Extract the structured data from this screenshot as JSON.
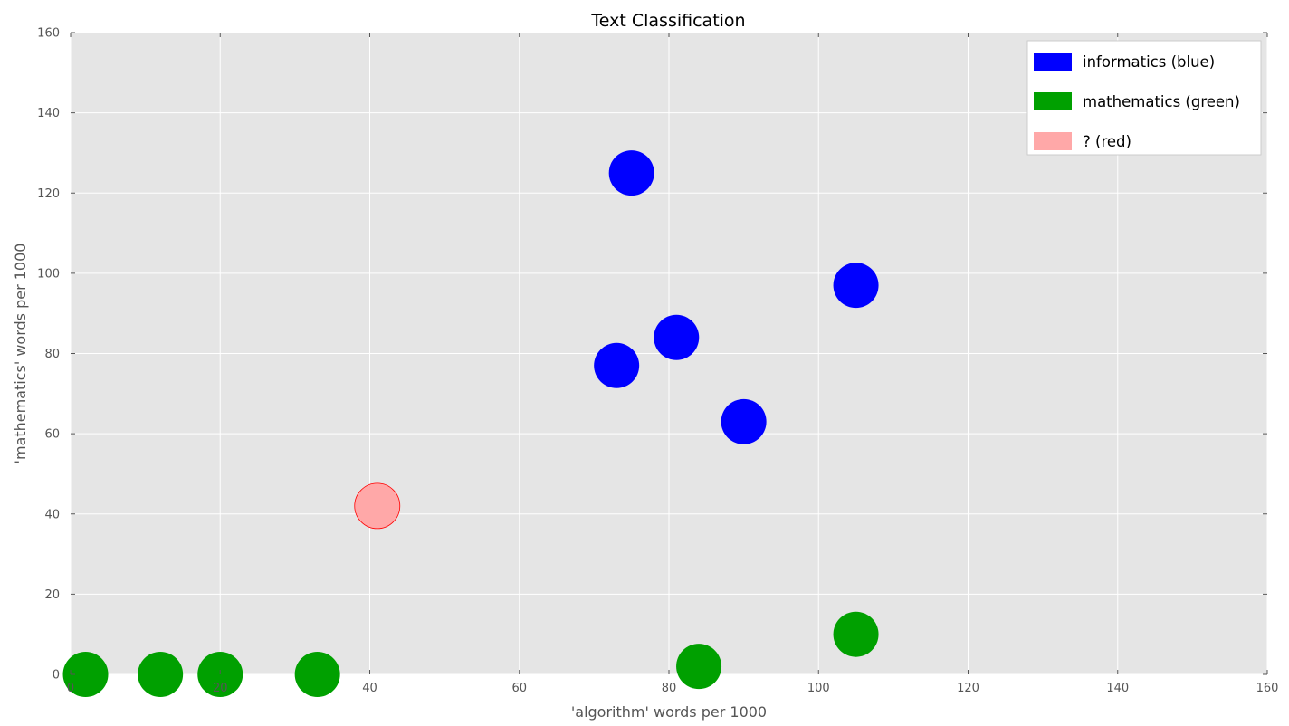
{
  "chart_data": {
    "type": "scatter",
    "title": "Text Classification",
    "xlabel": "'algorithm' words per 1000",
    "ylabel": "'mathematics' words per 1000",
    "xlim": [
      0,
      160
    ],
    "ylim": [
      0,
      160
    ],
    "xticks": [
      0,
      20,
      40,
      60,
      80,
      100,
      120,
      140,
      160
    ],
    "yticks": [
      0,
      20,
      40,
      60,
      80,
      100,
      120,
      140,
      160
    ],
    "grid": true,
    "background": "#e5e5e5",
    "legend_position": "top-right",
    "series": [
      {
        "name": "informatics (blue)",
        "color": "#0000ff",
        "points": [
          [
            75,
            125
          ],
          [
            105,
            97
          ],
          [
            81,
            84
          ],
          [
            73,
            77
          ],
          [
            90,
            63
          ]
        ]
      },
      {
        "name": "mathematics (green)",
        "color": "#00a000",
        "points": [
          [
            2,
            0
          ],
          [
            12,
            0
          ],
          [
            20,
            0
          ],
          [
            33,
            0
          ],
          [
            84,
            2
          ],
          [
            105,
            10
          ]
        ]
      },
      {
        "name": "? (red)",
        "color": "#ffa8a8",
        "points": [
          [
            41,
            42
          ]
        ]
      }
    ]
  }
}
